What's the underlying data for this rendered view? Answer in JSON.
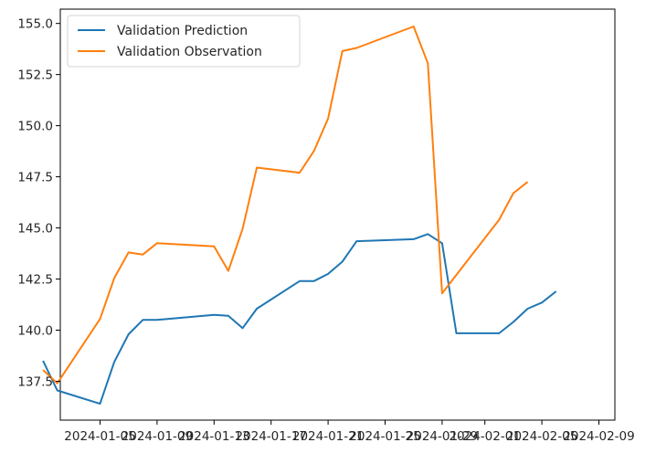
{
  "chart_data": {
    "type": "line",
    "x": [
      "2024-01-01",
      "2024-01-02",
      "2024-01-05",
      "2024-01-06",
      "2024-01-07",
      "2024-01-08",
      "2024-01-09",
      "2024-01-13",
      "2024-01-14",
      "2024-01-15",
      "2024-01-16",
      "2024-01-19",
      "2024-01-20",
      "2024-01-21",
      "2024-01-22",
      "2024-01-23",
      "2024-01-27",
      "2024-01-28",
      "2024-01-29",
      "2024-01-30",
      "2024-02-02",
      "2024-02-03",
      "2024-02-04",
      "2024-02-05",
      "2024-02-06"
    ],
    "series": [
      {
        "name": "Validation Prediction",
        "color": "#1f77b4",
        "values": [
          138.5,
          137.05,
          136.4,
          138.45,
          139.8,
          140.5,
          140.5,
          140.75,
          140.7,
          140.1,
          141.05,
          142.4,
          142.4,
          142.75,
          143.35,
          144.35,
          144.45,
          144.7,
          144.25,
          139.85,
          139.85,
          140.4,
          141.05,
          141.35,
          141.9
        ]
      },
      {
        "name": "Validation Observation",
        "color": "#ff7f0e",
        "values": [
          138.05,
          137.4,
          140.55,
          142.55,
          143.8,
          143.7,
          144.25,
          144.1,
          142.9,
          144.95,
          147.95,
          147.7,
          148.75,
          150.35,
          153.65,
          153.8,
          154.85,
          153.05,
          141.8,
          142.7,
          145.4,
          146.7,
          147.25,
          null,
          null
        ]
      }
    ],
    "x_ticks": [
      "2024-01-05",
      "2024-01-09",
      "2024-01-13",
      "2024-01-17",
      "2024-01-21",
      "2024-01-25",
      "2024-01-29",
      "2024-02-01",
      "2024-02-05",
      "2024-02-09"
    ],
    "y_ticks": [
      "137.5",
      "140.0",
      "142.5",
      "145.0",
      "147.5",
      "150.0",
      "152.5",
      "155.0"
    ],
    "ylim": [
      135.6,
      155.7
    ],
    "legend_position": "upper-left",
    "grid": false
  }
}
